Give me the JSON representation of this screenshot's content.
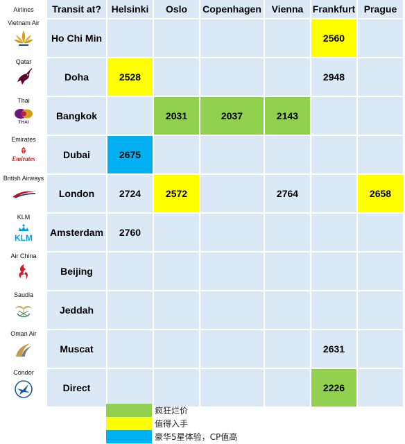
{
  "airlines_header": "Airlines",
  "airlines": [
    {
      "name": "Vietnam Air",
      "logo": "vietnam-airlines-lotus-logo"
    },
    {
      "name": "Qatar",
      "logo": "qatar-oryx-logo"
    },
    {
      "name": "Thai",
      "logo": "thai-orchid-logo"
    },
    {
      "name": "Emirates",
      "logo": "emirates-logo"
    },
    {
      "name": "British Airways",
      "logo": "british-airways-ribbon-logo"
    },
    {
      "name": "KLM",
      "logo": "klm-crown-logo"
    },
    {
      "name": "Air China",
      "logo": "air-china-phoenix-logo"
    },
    {
      "name": "Saudia",
      "logo": "saudia-palm-logo"
    },
    {
      "name": "Oman Air",
      "logo": "oman-air-logo"
    },
    {
      "name": "Condor",
      "logo": "condor-bird-logo"
    }
  ],
  "logo_text": {
    "emirates": "Emirates",
    "klm": "KLM",
    "thai": "THAI"
  },
  "chart_data": {
    "type": "table",
    "corner_label": "Transit at?",
    "columns": [
      "Helsinki",
      "Oslo",
      "Copenhagen",
      "Vienna",
      "Frankfurt",
      "Prague"
    ],
    "rows": [
      {
        "label": "Ho Chi Min",
        "values": [
          null,
          null,
          null,
          null,
          2560,
          null
        ],
        "highlight": [
          null,
          null,
          null,
          null,
          "yellow",
          null
        ]
      },
      {
        "label": "Doha",
        "values": [
          2528,
          null,
          null,
          null,
          2948,
          null
        ],
        "highlight": [
          "yellow",
          null,
          null,
          null,
          null,
          null
        ]
      },
      {
        "label": "Bangkok",
        "values": [
          null,
          2031,
          2037,
          2143,
          null,
          null
        ],
        "highlight": [
          null,
          "green",
          "green",
          "green",
          null,
          null
        ]
      },
      {
        "label": "Dubai",
        "values": [
          2675,
          null,
          null,
          null,
          null,
          null
        ],
        "highlight": [
          "blue",
          null,
          null,
          null,
          null,
          null
        ]
      },
      {
        "label": "London",
        "values": [
          2724,
          2572,
          null,
          2764,
          null,
          2658
        ],
        "highlight": [
          null,
          "yellow",
          null,
          null,
          null,
          "yellow"
        ]
      },
      {
        "label": "Amsterdam",
        "values": [
          2760,
          null,
          null,
          null,
          null,
          null
        ],
        "highlight": [
          null,
          null,
          null,
          null,
          null,
          null
        ]
      },
      {
        "label": "Beijing",
        "values": [
          null,
          null,
          null,
          null,
          null,
          null
        ],
        "highlight": [
          null,
          null,
          null,
          null,
          null,
          null
        ]
      },
      {
        "label": "Jeddah",
        "values": [
          null,
          null,
          null,
          null,
          null,
          null
        ],
        "highlight": [
          null,
          null,
          null,
          null,
          null,
          null
        ]
      },
      {
        "label": "Muscat",
        "values": [
          null,
          null,
          null,
          null,
          2631,
          null
        ],
        "highlight": [
          null,
          null,
          null,
          null,
          null,
          null
        ]
      },
      {
        "label": "Direct",
        "values": [
          null,
          null,
          null,
          null,
          2226,
          null
        ],
        "highlight": [
          null,
          null,
          null,
          null,
          "green",
          null
        ]
      }
    ],
    "legend": [
      {
        "key": "green",
        "label": "疯狂烂价"
      },
      {
        "key": "yellow",
        "label": "值得入手"
      },
      {
        "key": "blue",
        "label": "豪华5星体验，CP值高"
      }
    ]
  },
  "colors": {
    "cell_background": "#dbe9f6",
    "green": "#92d050",
    "yellow": "#ffff00",
    "blue": "#00b0f0",
    "grid_line": "#ffffff"
  }
}
